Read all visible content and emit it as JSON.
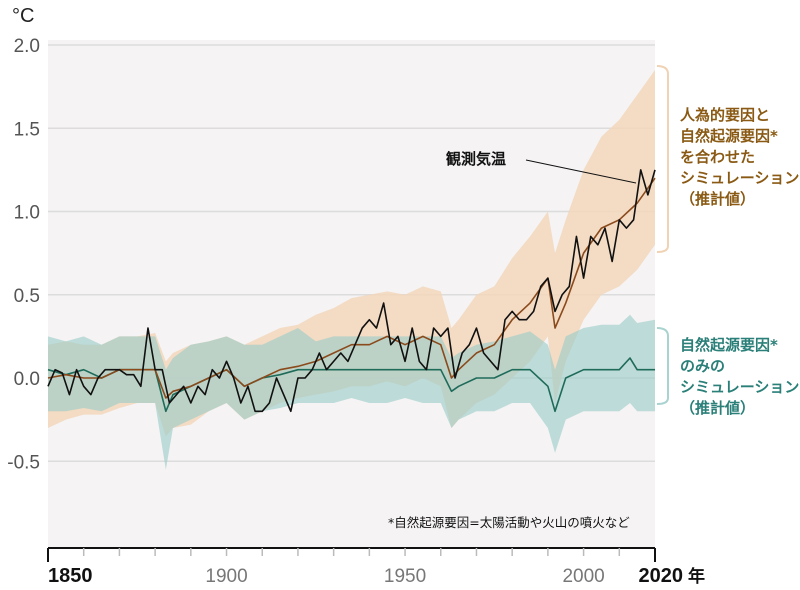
{
  "chart_data": {
    "type": "line",
    "ylabel": "°C",
    "xlabel_unit": "年",
    "xlim": [
      1850,
      2020
    ],
    "ylim": [
      -1.0,
      2.0
    ],
    "yticks": [
      "2.0",
      "1.5",
      "1.0",
      "0.5",
      "0.0",
      "-0.5"
    ],
    "ytick_values": [
      2.0,
      1.5,
      1.0,
      0.5,
      0.0,
      -0.5
    ],
    "xticks": [
      "1850",
      "1900",
      "1950",
      "2000",
      "2020"
    ],
    "xtick_values": [
      1850,
      1900,
      1950,
      2000,
      2020
    ],
    "grid": true,
    "footnote": "*自然起源要因=太陽活動や火山の噴火など",
    "colors": {
      "background": "#f5f3f3",
      "combined_band": "#f2d6bb",
      "combined_line": "#8b4a1c",
      "natural_band": "#97cbc8",
      "natural_line": "#1f6b5a",
      "observed_line": "#111111",
      "combined_text": "#8a5a14",
      "natural_text": "#2a7f78"
    },
    "series": [
      {
        "name": "観測気温",
        "kind": "line",
        "x": [
          1850,
          1852,
          1854,
          1856,
          1858,
          1860,
          1862,
          1864,
          1866,
          1868,
          1870,
          1872,
          1874,
          1876,
          1878,
          1880,
          1882,
          1884,
          1886,
          1888,
          1890,
          1892,
          1894,
          1896,
          1898,
          1900,
          1902,
          1904,
          1906,
          1908,
          1910,
          1912,
          1914,
          1916,
          1918,
          1920,
          1922,
          1924,
          1926,
          1928,
          1930,
          1932,
          1934,
          1936,
          1938,
          1940,
          1942,
          1944,
          1946,
          1948,
          1950,
          1952,
          1954,
          1956,
          1958,
          1960,
          1962,
          1964,
          1966,
          1968,
          1970,
          1972,
          1974,
          1976,
          1978,
          1980,
          1982,
          1984,
          1986,
          1988,
          1990,
          1992,
          1994,
          1996,
          1998,
          2000,
          2002,
          2004,
          2006,
          2008,
          2010,
          2012,
          2014,
          2016,
          2018,
          2020
        ],
        "y": [
          -0.05,
          0.05,
          0.03,
          -0.1,
          0.05,
          -0.05,
          -0.1,
          0.0,
          0.05,
          0.05,
          0.05,
          0.02,
          0.02,
          -0.05,
          0.3,
          0.05,
          0.05,
          -0.15,
          -0.1,
          -0.05,
          -0.15,
          -0.05,
          -0.1,
          0.05,
          0.0,
          0.1,
          0.0,
          -0.15,
          -0.05,
          -0.2,
          -0.2,
          -0.15,
          0.0,
          -0.1,
          -0.2,
          0.0,
          0.0,
          0.05,
          0.15,
          0.05,
          0.1,
          0.15,
          0.1,
          0.2,
          0.3,
          0.35,
          0.3,
          0.45,
          0.2,
          0.25,
          0.1,
          0.3,
          0.1,
          0.05,
          0.3,
          0.25,
          0.3,
          0.0,
          0.15,
          0.2,
          0.3,
          0.15,
          0.1,
          0.05,
          0.35,
          0.4,
          0.35,
          0.35,
          0.4,
          0.55,
          0.6,
          0.4,
          0.5,
          0.55,
          0.85,
          0.6,
          0.85,
          0.8,
          0.9,
          0.7,
          0.95,
          0.9,
          0.95,
          1.25,
          1.1,
          1.25
        ]
      },
      {
        "name": "人為的要因と自然起源要因*を合わせたシミュレーション（推計値）",
        "kind": "band+line",
        "x": [
          1850,
          1855,
          1860,
          1865,
          1870,
          1875,
          1880,
          1883,
          1885,
          1890,
          1895,
          1900,
          1905,
          1910,
          1915,
          1920,
          1925,
          1930,
          1935,
          1940,
          1945,
          1950,
          1955,
          1960,
          1963,
          1965,
          1970,
          1975,
          1980,
          1985,
          1990,
          1992,
          1995,
          2000,
          2005,
          2010,
          2015,
          2020
        ],
        "mean": [
          0.0,
          0.02,
          0.0,
          0.0,
          0.05,
          0.05,
          0.05,
          -0.12,
          -0.08,
          -0.05,
          0.0,
          0.05,
          -0.05,
          0.0,
          0.05,
          0.07,
          0.1,
          0.15,
          0.2,
          0.2,
          0.25,
          0.2,
          0.25,
          0.2,
          0.0,
          0.05,
          0.15,
          0.2,
          0.35,
          0.45,
          0.6,
          0.3,
          0.45,
          0.75,
          0.9,
          0.95,
          1.05,
          1.2
        ],
        "upper": [
          0.2,
          0.22,
          0.2,
          0.2,
          0.25,
          0.25,
          0.27,
          0.1,
          0.15,
          0.2,
          0.22,
          0.25,
          0.2,
          0.25,
          0.3,
          0.32,
          0.38,
          0.42,
          0.48,
          0.5,
          0.52,
          0.5,
          0.55,
          0.52,
          0.3,
          0.35,
          0.5,
          0.55,
          0.72,
          0.85,
          1.0,
          0.75,
          0.95,
          1.25,
          1.45,
          1.55,
          1.7,
          1.85
        ],
        "lower": [
          -0.3,
          -0.25,
          -0.22,
          -0.22,
          -0.18,
          -0.15,
          -0.15,
          -0.35,
          -0.3,
          -0.28,
          -0.2,
          -0.15,
          -0.25,
          -0.2,
          -0.15,
          -0.12,
          -0.1,
          -0.08,
          -0.05,
          -0.05,
          -0.02,
          -0.05,
          0.0,
          -0.05,
          -0.3,
          -0.25,
          -0.15,
          -0.1,
          0.0,
          0.1,
          0.25,
          -0.15,
          0.1,
          0.35,
          0.5,
          0.55,
          0.65,
          0.8
        ]
      },
      {
        "name": "自然起源要因*のみのシミュレーション（推計値）",
        "kind": "band+line",
        "x": [
          1850,
          1855,
          1860,
          1865,
          1870,
          1875,
          1880,
          1883,
          1885,
          1890,
          1895,
          1900,
          1905,
          1910,
          1915,
          1920,
          1925,
          1930,
          1935,
          1940,
          1945,
          1950,
          1955,
          1960,
          1963,
          1965,
          1970,
          1975,
          1980,
          1985,
          1990,
          1992,
          1995,
          2000,
          2005,
          2010,
          2013,
          2015,
          2020
        ],
        "mean": [
          0.05,
          0.02,
          0.05,
          0.0,
          0.05,
          0.05,
          0.05,
          -0.2,
          -0.1,
          -0.05,
          0.0,
          0.05,
          -0.05,
          0.0,
          0.02,
          0.05,
          0.05,
          0.05,
          0.05,
          0.05,
          0.05,
          0.05,
          0.05,
          0.05,
          -0.08,
          -0.05,
          0.0,
          0.0,
          0.05,
          0.05,
          -0.05,
          -0.2,
          0.0,
          0.05,
          0.05,
          0.05,
          0.12,
          0.05,
          0.05
        ],
        "upper": [
          0.25,
          0.22,
          0.25,
          0.2,
          0.25,
          0.25,
          0.25,
          0.05,
          0.12,
          0.2,
          0.22,
          0.25,
          0.2,
          0.2,
          0.25,
          0.3,
          0.22,
          0.25,
          0.25,
          0.25,
          0.25,
          0.25,
          0.25,
          0.25,
          0.12,
          0.15,
          0.2,
          0.22,
          0.25,
          0.28,
          0.2,
          0.05,
          0.25,
          0.3,
          0.32,
          0.32,
          0.38,
          0.33,
          0.35
        ],
        "lower": [
          -0.2,
          -0.2,
          -0.18,
          -0.2,
          -0.15,
          -0.15,
          -0.15,
          -0.55,
          -0.3,
          -0.25,
          -0.2,
          -0.15,
          -0.25,
          -0.2,
          -0.18,
          -0.15,
          -0.15,
          -0.15,
          -0.12,
          -0.15,
          -0.15,
          -0.12,
          -0.15,
          -0.15,
          -0.3,
          -0.25,
          -0.2,
          -0.2,
          -0.15,
          -0.15,
          -0.3,
          -0.45,
          -0.25,
          -0.2,
          -0.2,
          -0.2,
          -0.15,
          -0.2,
          -0.2
        ]
      }
    ],
    "annotations": {
      "observed_label": "観測気温",
      "combined_label": [
        "人為的要因と",
        "自然起源要因*",
        "を合わせた",
        "シミュレーション",
        "（推計値）"
      ],
      "natural_label": [
        "自然起源要因*",
        "のみの",
        "シミュレーション",
        "（推計値）"
      ]
    }
  }
}
